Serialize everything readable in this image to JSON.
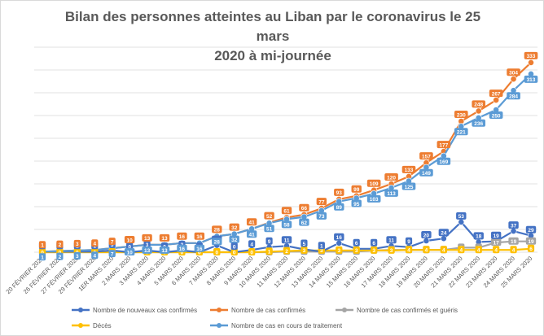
{
  "chart_data": {
    "type": "line",
    "title_line1": "Bilan des personnes atteintes au Liban par le coronavirus le 25 mars",
    "title_line2": "2020 à mi-journée",
    "categories": [
      "20 FÉVRIER 2020",
      "26 FÉVRIER 2020",
      "27 FÉVRIER 2020",
      "29 FÉVRIER 2020",
      "1ER MARS 2020",
      "2 MARS 2020",
      "3 MARS 2020",
      "4 MARS 2020",
      "5 MARS 2020",
      "6 MARS 2020",
      "7 MARS 2020",
      "8 MARS 2020",
      "9 MARS 2020",
      "10 MARS 2020",
      "11 MARS 2020",
      "12 MARS 2020",
      "13 MARS 2020",
      "14 MARS 2020",
      "15 MARS 2020",
      "16 MARS 2020",
      "17 MARS 2020",
      "18 MARS 2020",
      "19 MARS 2020",
      "20 MARS 2020",
      "21 MARS 2020",
      "22 MARS 2020",
      "23 MARS 2020",
      "24 MARS 2020",
      "25 MARS 2020"
    ],
    "ylim": [
      0,
      360
    ],
    "grid": true,
    "legend_position": "bottom",
    "series": [
      {
        "name": "Nombre de nouveaux cas confirmés",
        "color": "#4472c4",
        "values": [
          1,
          1,
          1,
          1,
          3,
          0,
          3,
          0,
          3,
          0,
          12,
          0,
          4,
          9,
          11,
          5,
          1,
          16,
          6,
          6,
          11,
          9,
          20,
          24,
          53,
          18,
          19,
          37,
          29
        ]
      },
      {
        "name": "Nombre de cas confirmés",
        "color": "#ed7d31",
        "values": [
          1,
          2,
          3,
          4,
          7,
          10,
          13,
          13,
          16,
          16,
          28,
          32,
          41,
          52,
          61,
          66,
          77,
          93,
          99,
          109,
          120,
          133,
          157,
          177,
          230,
          248,
          267,
          304,
          333
        ]
      },
      {
        "name": "Nombre de cas confirmés et guéris",
        "color": "#a5a5a5",
        "values": [
          0,
          0,
          0,
          0,
          0,
          0,
          0,
          0,
          0,
          0,
          0,
          0,
          0,
          0,
          1,
          1,
          1,
          1,
          1,
          3,
          4,
          4,
          4,
          4,
          8,
          8,
          17,
          19,
          19
        ]
      },
      {
        "name": "Décès",
        "color": "#ffc000",
        "values": [
          0,
          0,
          0,
          0,
          0,
          0,
          0,
          0,
          0,
          0,
          0,
          0,
          0,
          1,
          2,
          3,
          3,
          3,
          3,
          3,
          3,
          4,
          4,
          4,
          4,
          4,
          4,
          4,
          6
        ]
      },
      {
        "name": "Nombre de cas en cours de traitement",
        "color": "#5b9bd5",
        "values": [
          1,
          2,
          3,
          4,
          7,
          10,
          13,
          13,
          16,
          16,
          28,
          32,
          41,
          51,
          58,
          62,
          73,
          89,
          95,
          103,
          113,
          125,
          149,
          169,
          221,
          236,
          250,
          284,
          313
        ]
      }
    ],
    "data_labels": [
      [
        1,
        1,
        1,
        1,
        3,
        0,
        3,
        0,
        3,
        0,
        12,
        0,
        4,
        9,
        11,
        5,
        1,
        16,
        6,
        6,
        11,
        9,
        20,
        24,
        53,
        18,
        19,
        37,
        29
      ],
      [
        1,
        2,
        3,
        4,
        7,
        10,
        13,
        13,
        16,
        16,
        28,
        32,
        41,
        52,
        61,
        66,
        77,
        93,
        99,
        109,
        120,
        133,
        157,
        177,
        230,
        248,
        267,
        304,
        333
      ],
      [
        0,
        0,
        0,
        0,
        0,
        0,
        0,
        0,
        0,
        0,
        0,
        0,
        0,
        0,
        1,
        1,
        1,
        1,
        1,
        3,
        4,
        4,
        4,
        4,
        8,
        8,
        17,
        19,
        19
      ],
      [
        0,
        0,
        0,
        0,
        0,
        0,
        0,
        0,
        0,
        0,
        0,
        0,
        0,
        1,
        2,
        3,
        3,
        3,
        3,
        3,
        3,
        4,
        4,
        4,
        4,
        4,
        4,
        4,
        6
      ],
      [
        1,
        2,
        3,
        4,
        7,
        10,
        13,
        13,
        16,
        16,
        28,
        32,
        41,
        51,
        58,
        62,
        73,
        89,
        95,
        103,
        113,
        125,
        149,
        169,
        221,
        236,
        250,
        284,
        313
      ]
    ]
  }
}
